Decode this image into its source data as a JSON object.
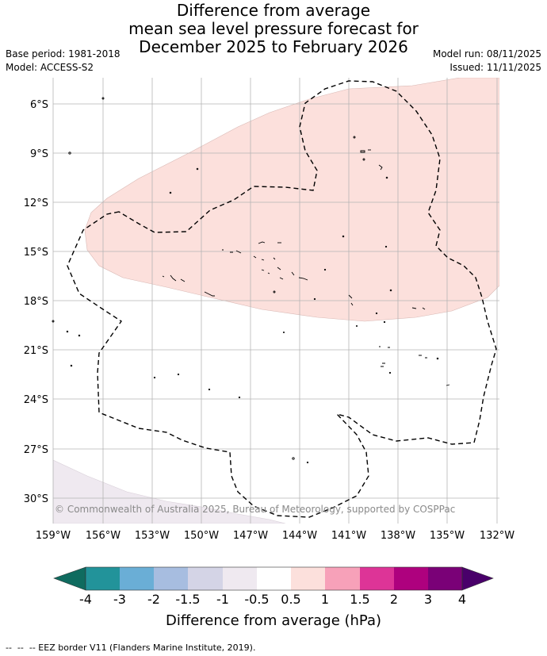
{
  "title": {
    "line1": "Difference from average",
    "line2": "mean sea level pressure forecast for",
    "line3": "December 2025 to February 2026"
  },
  "meta": {
    "base_period": "Base period: 1981-2018",
    "model": "Model: ACCESS-S2",
    "model_run": "Model run: 08/11/2025",
    "issued": "Issued: 11/11/2025"
  },
  "map": {
    "lat_labels": [
      "6°S",
      "9°S",
      "12°S",
      "15°S",
      "18°S",
      "21°S",
      "24°S",
      "27°S",
      "30°S"
    ],
    "lon_labels": [
      "159°W",
      "156°W",
      "153°W",
      "150°W",
      "147°W",
      "144°W",
      "141°W",
      "138°W",
      "135°W",
      "132°W"
    ],
    "copyright": "© Commonwealth of Australia 2025, Bureau of Meteorology, supported by COSPPac",
    "positive_anomaly_fill": "#fce0dc",
    "negative_anomaly_fill": "#efe9f0"
  },
  "colorbar": {
    "ticks": [
      "-4",
      "-3",
      "-2",
      "-1.5",
      "-1",
      "-0.5",
      "0.5",
      "1",
      "1.5",
      "2",
      "3",
      "4"
    ],
    "colors": [
      "#0f6b5f",
      "#22939a",
      "#6aaed6",
      "#a7bde0",
      "#d4d4e6",
      "#efe9f0",
      "#ffffff",
      "#fce0dc",
      "#f7a1b9",
      "#dd3497",
      "#ae017e",
      "#7a0177",
      "#49006a"
    ],
    "label": "Difference from average (hPa)"
  },
  "footer": {
    "legend_text": "--  --  -- EEZ border V11 (Flanders Marine Institute, 2019)."
  }
}
